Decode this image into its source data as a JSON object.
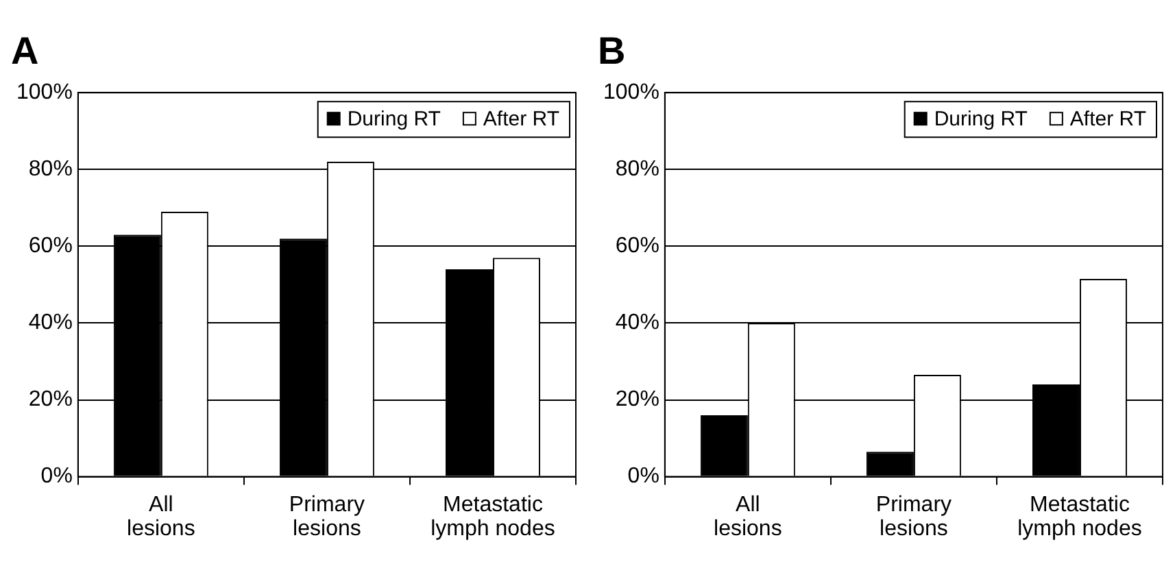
{
  "chart_data": [
    {
      "type": "bar",
      "title": "A",
      "categories": [
        "All\nlesions",
        "Primary\nlesions",
        "Metastatic\nlymph nodes"
      ],
      "series": [
        {
          "name": "During RT",
          "color": "#000000",
          "values": [
            63,
            62,
            54
          ]
        },
        {
          "name": "After RT",
          "color": "#ffffff",
          "values": [
            69,
            82,
            57
          ]
        }
      ],
      "ylim": [
        0,
        100
      ],
      "yticks": [
        {
          "value": 0,
          "label": "0%"
        },
        {
          "value": 20,
          "label": "20%"
        },
        {
          "value": 40,
          "label": "40%"
        },
        {
          "value": 60,
          "label": "60%"
        },
        {
          "value": 80,
          "label": "80%"
        },
        {
          "value": 100,
          "label": "100%"
        }
      ],
      "grid": "y",
      "legend": "top right"
    },
    {
      "type": "bar",
      "title": "B",
      "categories": [
        "All\nlesions",
        "Primary\nlesions",
        "Metastatic\nlymph nodes"
      ],
      "series": [
        {
          "name": "During RT",
          "color": "#000000",
          "values": [
            16,
            6.5,
            24
          ]
        },
        {
          "name": "After RT",
          "color": "#ffffff",
          "values": [
            40,
            26.5,
            51.5
          ]
        }
      ],
      "ylim": [
        0,
        100
      ],
      "yticks": [
        {
          "value": 0,
          "label": "0%"
        },
        {
          "value": 20,
          "label": "20%"
        },
        {
          "value": 40,
          "label": "40%"
        },
        {
          "value": 60,
          "label": "60%"
        },
        {
          "value": 80,
          "label": "80%"
        },
        {
          "value": 100,
          "label": "100%"
        }
      ],
      "grid": "y",
      "legend": "top right"
    }
  ]
}
